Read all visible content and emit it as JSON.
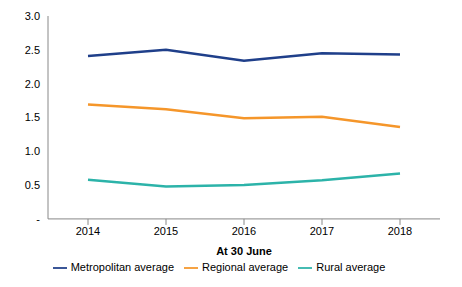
{
  "chart_data": {
    "type": "line",
    "x_label": "At 30 June",
    "categories": [
      "2014",
      "2015",
      "2016",
      "2017",
      "2018"
    ],
    "series": [
      {
        "name": "Metropolitan average",
        "color": "#1f3f8a",
        "values": [
          2.41,
          2.5,
          2.34,
          2.45,
          2.43
        ]
      },
      {
        "name": "Regional average",
        "color": "#f5962a",
        "values": [
          1.69,
          1.62,
          1.49,
          1.51,
          1.36
        ]
      },
      {
        "name": "Rural average",
        "color": "#2cb3a9",
        "values": [
          0.58,
          0.48,
          0.5,
          0.57,
          0.67
        ]
      }
    ],
    "ylim": [
      0,
      3
    ],
    "yticks": [
      {
        "value": 0,
        "label": "-"
      },
      0.5,
      {
        "value": 1,
        "label": "1.0"
      },
      1.5,
      {
        "value": 2,
        "label": "2.0"
      },
      2.5,
      {
        "value": 3,
        "label": "3.0"
      }
    ],
    "grid": false,
    "legend": "bottom"
  }
}
